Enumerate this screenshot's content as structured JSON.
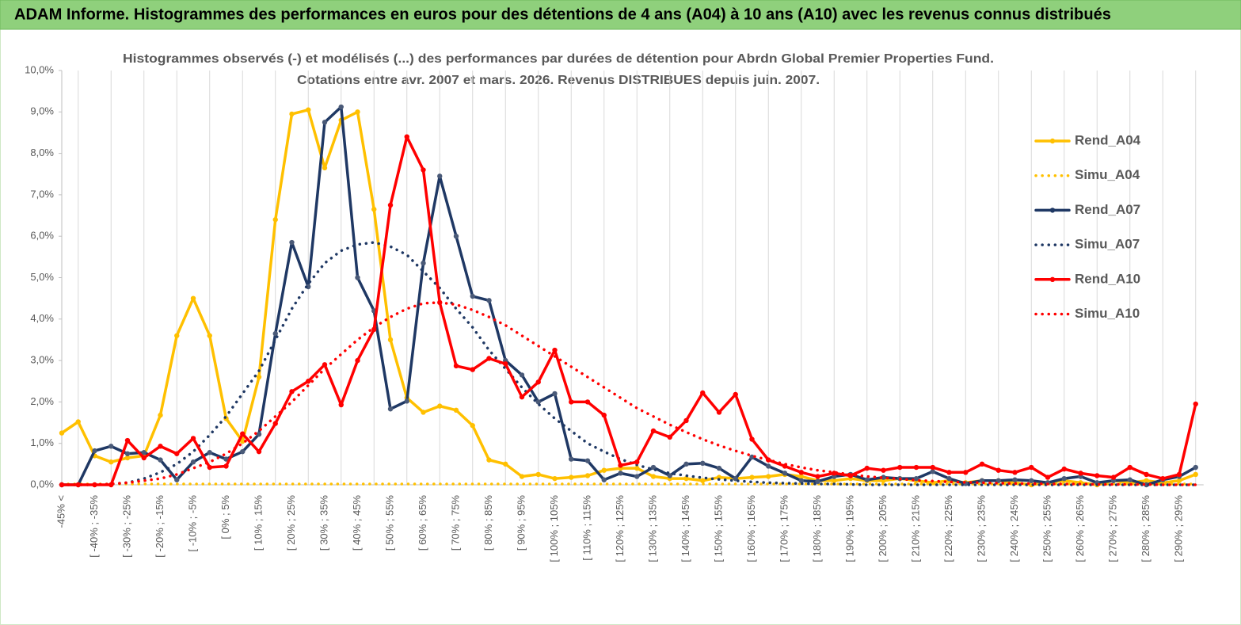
{
  "header": {
    "title": "ADAM Informe. Histogrammes des performances en euros pour des détentions de 4 ans (A04) à 10 ans (A10) avec les revenus connus distribués"
  },
  "chart_data": {
    "type": "line",
    "title": "Histogrammes observés (-) et modélisés (...) des performances par durées de détention pour Abrdn Global Premier Properties Fund.",
    "subtitle": "Cotations entre avr. 2007 et mars. 2026. Revenus DISTRIBUES depuis juin. 2007.",
    "categories": [
      "-45% <",
      null,
      "[ -40% ; -35%",
      null,
      "[ -30% ; -25%",
      null,
      "[ -20% ; -15%",
      null,
      "[ -10% ; -5%",
      null,
      "[ 0% ; 5%",
      null,
      "[ 10% ; 15%",
      null,
      "[ 20% ; 25%",
      null,
      "[ 30% ; 35%",
      null,
      "[ 40% ; 45%",
      null,
      "[ 50% ; 55%",
      null,
      "[ 60% ; 65%",
      null,
      "[ 70% ; 75%",
      null,
      "[ 80% ; 85%",
      null,
      "[ 90% ; 95%",
      null,
      "[ 100% ; 105%",
      null,
      "[ 110% ; 115%",
      null,
      "[ 120% ; 125%",
      null,
      "[ 130% ; 135%",
      null,
      "[ 140% ; 145%",
      null,
      "[ 150% ; 155%",
      null,
      "[ 160% ; 165%",
      null,
      "[ 170% ; 175%",
      null,
      "[ 180% ; 185%",
      null,
      "[ 190% ; 195%",
      null,
      "[ 200% ; 205%",
      null,
      "[ 210% ; 215%",
      null,
      "[ 220% ; 225%",
      null,
      "[ 230% ; 235%",
      null,
      "[ 240% ; 245%",
      null,
      "[ 250% ; 255%",
      null,
      "[ 260% ; 265%",
      null,
      "[ 270% ; 275%",
      null,
      "[ 280% ; 285%",
      null,
      "[ 290% ; 295%",
      null
    ],
    "series": [
      {
        "name": "Rend_A04",
        "color": "#ffc000",
        "style": "solid",
        "values": [
          1.25,
          1.52,
          0.7,
          0.55,
          0.65,
          0.7,
          1.68,
          3.6,
          4.5,
          3.6,
          1.6,
          1.05,
          2.6,
          6.4,
          8.95,
          9.05,
          7.65,
          8.8,
          9.0,
          6.65,
          3.5,
          2.1,
          1.75,
          1.9,
          1.8,
          1.43,
          0.6,
          0.5,
          0.2,
          0.25,
          0.15,
          0.18,
          0.22,
          0.35,
          0.4,
          0.4,
          0.2,
          0.15,
          0.15,
          0.1,
          0.18,
          0.15,
          0.18,
          0.2,
          0.25,
          0.2,
          0.1,
          0.1,
          0.15,
          0.1,
          0.1,
          0.15,
          0.1,
          0.05,
          0.1,
          0.05,
          0.1,
          0.1,
          0.05,
          0.0,
          0.05,
          0.1,
          0.05,
          0.0,
          0.1,
          0.05,
          0.1,
          0.05,
          0.1,
          0.25
        ]
      },
      {
        "name": "Simu_A04",
        "color": "#ffc000",
        "style": "dotted",
        "values": [
          0.02,
          0.02,
          0.02,
          0.02,
          0.02,
          0.02,
          0.02,
          0.02,
          0.02,
          0.02,
          0.02,
          0.02,
          0.02,
          0.02,
          0.02,
          0.02,
          0.02,
          0.02,
          0.02,
          0.02,
          0.02,
          0.02,
          0.02,
          0.02,
          0.02,
          0.02,
          0.02,
          0.02,
          0.02,
          0.02,
          0.02,
          0.02,
          0.02,
          0.02,
          0.02,
          0.02,
          0.02,
          0.02,
          0.02,
          0.02,
          0.02,
          0.02,
          0.02,
          0.02,
          0.02,
          0.02,
          0.02,
          0.02,
          0.02,
          0.02,
          0.02,
          0.02,
          0.02,
          0.02,
          0.02,
          0.02,
          0.02,
          0.02,
          0.02,
          0.02,
          0.02,
          0.02,
          0.02,
          0.02,
          0.02,
          0.02,
          0.02,
          0.02,
          0.02,
          0.02
        ]
      },
      {
        "name": "Rend_A07",
        "color": "#1f3864",
        "style": "solid",
        "values": [
          0,
          0,
          0.82,
          0.93,
          0.75,
          0.78,
          0.6,
          0.12,
          0.55,
          0.78,
          0.62,
          0.8,
          1.22,
          3.65,
          5.85,
          4.78,
          8.75,
          9.12,
          5.0,
          4.2,
          1.83,
          2.02,
          5.35,
          7.45,
          6.0,
          4.55,
          4.45,
          3.0,
          2.65,
          2.0,
          2.2,
          0.62,
          0.58,
          0.12,
          0.28,
          0.2,
          0.42,
          0.22,
          0.5,
          0.52,
          0.4,
          0.15,
          0.67,
          0.45,
          0.28,
          0.1,
          0.08,
          0.2,
          0.25,
          0.12,
          0.18,
          0.15,
          0.15,
          0.32,
          0.15,
          0.03,
          0.1,
          0.1,
          0.12,
          0.1,
          0.05,
          0.15,
          0.2,
          0.05,
          0.1,
          0.12,
          0.0,
          0.12,
          0.2,
          0.42
        ]
      },
      {
        "name": "Simu_A07",
        "color": "#1f3864",
        "style": "dotted",
        "values": [
          0,
          0,
          0,
          0.02,
          0.05,
          0.15,
          0.3,
          0.5,
          0.8,
          1.2,
          1.65,
          2.2,
          2.75,
          3.5,
          4.25,
          4.85,
          5.35,
          5.65,
          5.8,
          5.85,
          5.75,
          5.55,
          5.15,
          4.75,
          4.25,
          3.8,
          3.25,
          2.8,
          2.35,
          1.95,
          1.6,
          1.3,
          1.0,
          0.8,
          0.62,
          0.48,
          0.37,
          0.28,
          0.22,
          0.17,
          0.13,
          0.1,
          0.07,
          0.05,
          0.04,
          0.03,
          0.02,
          0.02,
          0.01,
          0,
          0,
          0,
          0,
          0,
          0,
          0,
          0,
          0,
          0,
          0,
          0,
          0,
          0,
          0,
          0,
          0,
          0,
          0,
          0,
          0
        ]
      },
      {
        "name": "Rend_A10",
        "color": "#ff0000",
        "style": "solid",
        "values": [
          0,
          0,
          0,
          0,
          1.07,
          0.65,
          0.93,
          0.75,
          1.12,
          0.42,
          0.45,
          1.23,
          0.8,
          1.48,
          2.25,
          2.5,
          2.9,
          1.93,
          3.0,
          3.75,
          6.75,
          8.4,
          7.6,
          4.4,
          2.87,
          2.78,
          3.05,
          2.92,
          2.12,
          2.48,
          3.25,
          2.0,
          2.0,
          1.68,
          0.47,
          0.55,
          1.3,
          1.15,
          1.55,
          2.22,
          1.75,
          2.18,
          1.1,
          0.6,
          0.45,
          0.3,
          0.2,
          0.28,
          0.22,
          0.4,
          0.35,
          0.42,
          0.42,
          0.42,
          0.3,
          0.3,
          0.5,
          0.35,
          0.3,
          0.42,
          0.18,
          0.38,
          0.28,
          0.22,
          0.18,
          0.42,
          0.25,
          0.15,
          0.25,
          1.95
        ]
      },
      {
        "name": "Simu_A10",
        "color": "#ff0000",
        "style": "dotted",
        "values": [
          0,
          0,
          0,
          0.02,
          0.05,
          0.1,
          0.15,
          0.25,
          0.4,
          0.55,
          0.75,
          1.0,
          1.3,
          1.65,
          2.0,
          2.4,
          2.8,
          3.15,
          3.5,
          3.8,
          4.05,
          4.25,
          4.38,
          4.4,
          4.35,
          4.22,
          4.05,
          3.85,
          3.6,
          3.35,
          3.1,
          2.85,
          2.6,
          2.35,
          2.1,
          1.85,
          1.65,
          1.45,
          1.27,
          1.1,
          0.95,
          0.82,
          0.7,
          0.6,
          0.5,
          0.42,
          0.35,
          0.3,
          0.25,
          0.2,
          0.17,
          0.14,
          0.11,
          0.09,
          0.07,
          0.06,
          0.05,
          0.04,
          0.03,
          0.03,
          0.02,
          0.02,
          0.02,
          0.01,
          0.01,
          0.01,
          0.01,
          0,
          0,
          0
        ]
      }
    ],
    "ylim": [
      0,
      10
    ],
    "yticks": [
      {
        "value": 0,
        "label": "0,0%"
      },
      {
        "value": 1,
        "label": "1,0%"
      },
      {
        "value": 2,
        "label": "2,0%"
      },
      {
        "value": 3,
        "label": "3,0%"
      },
      {
        "value": 4,
        "label": "4,0%"
      },
      {
        "value": 5,
        "label": "5,0%"
      },
      {
        "value": 6,
        "label": "6,0%"
      },
      {
        "value": 7,
        "label": "7,0%"
      },
      {
        "value": 8,
        "label": "8,0%"
      },
      {
        "value": 9,
        "label": "9,0%"
      },
      {
        "value": 10,
        "label": "10,0%"
      }
    ],
    "grid": "vertical",
    "legend": "right"
  }
}
